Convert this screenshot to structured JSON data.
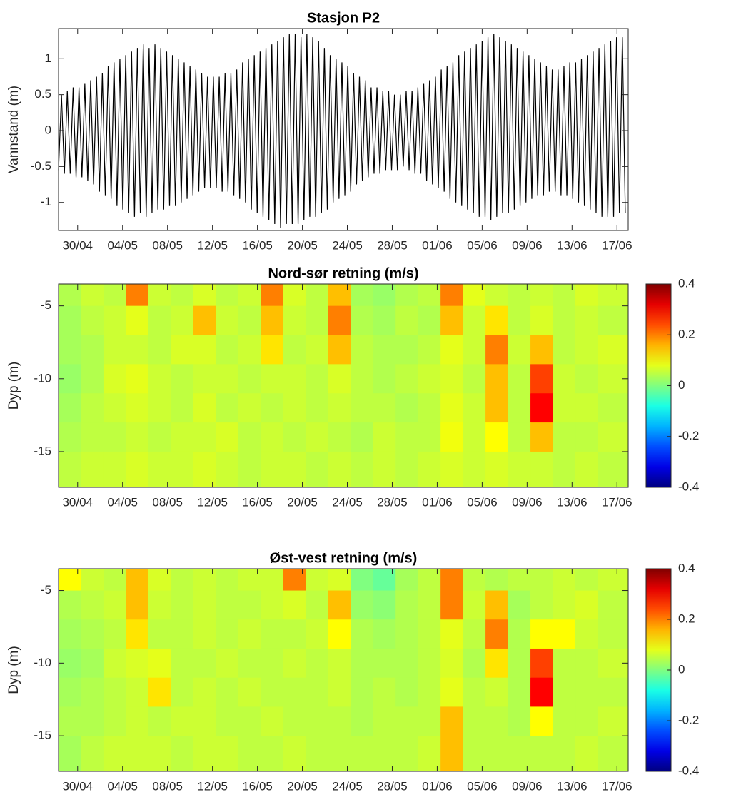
{
  "chart_data": [
    {
      "type": "line",
      "title": "Stasjon P2",
      "ylabel": "Vannstand (m)",
      "color": "#000000",
      "xlim": [
        0,
        50.7
      ],
      "ylim": [
        -1.39,
        1.42
      ],
      "yticks": [
        -1,
        -0.5,
        0,
        0.5,
        1
      ],
      "xticks": [
        {
          "value": 1.7,
          "label": "30/04"
        },
        {
          "value": 5.7,
          "label": "04/05"
        },
        {
          "value": 9.7,
          "label": "08/05"
        },
        {
          "value": 13.7,
          "label": "12/05"
        },
        {
          "value": 17.7,
          "label": "16/05"
        },
        {
          "value": 21.7,
          "label": "20/05"
        },
        {
          "value": 25.7,
          "label": "24/05"
        },
        {
          "value": 29.7,
          "label": "28/05"
        },
        {
          "value": 33.7,
          "label": "01/06"
        },
        {
          "value": 37.7,
          "label": "05/06"
        },
        {
          "value": 41.7,
          "label": "09/06"
        },
        {
          "value": 45.7,
          "label": "13/06"
        },
        {
          "value": 49.7,
          "label": "17/06"
        }
      ],
      "x": [
        0,
        0.26,
        0.52,
        0.78,
        1.04,
        1.3,
        1.56,
        1.82,
        2.08,
        2.34,
        2.6,
        2.86,
        3.12,
        3.38,
        3.64,
        3.9,
        4.16,
        4.42,
        4.68,
        4.94,
        5.2,
        5.46,
        5.72,
        5.98,
        6.24,
        6.5,
        6.76,
        7.02,
        7.28,
        7.54,
        7.8,
        8.06,
        8.32,
        8.58,
        8.84,
        9.1,
        9.36,
        9.62,
        9.88,
        10.14,
        10.4,
        10.66,
        10.92,
        11.18,
        11.44,
        11.7,
        11.96,
        12.22,
        12.48,
        12.74,
        13,
        13.26,
        13.52,
        13.78,
        14.04,
        14.3,
        14.56,
        14.82,
        15.08,
        15.34,
        15.6,
        15.86,
        16.12,
        16.38,
        16.64,
        16.9,
        17.16,
        17.42,
        17.68,
        17.94,
        18.2,
        18.46,
        18.72,
        18.98,
        19.24,
        19.5,
        19.76,
        20.02,
        20.28,
        20.54,
        20.8,
        21.06,
        21.32,
        21.58,
        21.84,
        22.1,
        22.36,
        22.62,
        22.88,
        23.14,
        23.4,
        23.66,
        23.92,
        24.18,
        24.44,
        24.7,
        24.96,
        25.22,
        25.48,
        25.74,
        26,
        26.26,
        26.52,
        26.78,
        27.04,
        27.3,
        27.56,
        27.82,
        28.08,
        28.34,
        28.6,
        28.86,
        29.12,
        29.38,
        29.64,
        29.9,
        30.16,
        30.42,
        30.68,
        30.94,
        31.2,
        31.46,
        31.72,
        31.98,
        32.24,
        32.5,
        32.76,
        33.02,
        33.28,
        33.54,
        33.8,
        34.06,
        34.32,
        34.58,
        34.84,
        35.1,
        35.36,
        35.62,
        35.88,
        36.14,
        36.4,
        36.66,
        36.92,
        37.18,
        37.44,
        37.7,
        37.96,
        38.22,
        38.48,
        38.74,
        39,
        39.26,
        39.52,
        39.78,
        40.04,
        40.3,
        40.56,
        40.82,
        41.08,
        41.34,
        41.6,
        41.86,
        42.12,
        42.38,
        42.64,
        42.9,
        43.16,
        43.42,
        43.68,
        43.94,
        44.2,
        44.46,
        44.72,
        44.98,
        45.24,
        45.5,
        45.76,
        46.02,
        46.28,
        46.54,
        46.8,
        47.06,
        47.32,
        47.58,
        47.84,
        48.1,
        48.36,
        48.62,
        48.88,
        49.14,
        49.4,
        49.66,
        49.92,
        50.18,
        50.44
      ],
      "values": [
        -0.55,
        0.5,
        -0.6,
        0.55,
        -0.6,
        0.6,
        -0.65,
        0.6,
        -0.65,
        0.65,
        -0.7,
        0.7,
        -0.75,
        0.75,
        -0.85,
        0.8,
        -0.9,
        0.9,
        -0.95,
        0.95,
        -1.05,
        1.0,
        -1.1,
        1.05,
        -1.15,
        1.1,
        -1.2,
        1.15,
        -1.15,
        1.2,
        -1.2,
        1.15,
        -1.15,
        1.2,
        -1.1,
        1.15,
        -1.1,
        1.1,
        -1.05,
        1.05,
        -1.05,
        1.0,
        -1.0,
        0.95,
        -0.95,
        0.9,
        -0.9,
        0.85,
        -0.85,
        0.8,
        -0.8,
        0.75,
        -0.8,
        0.75,
        -0.8,
        0.75,
        -0.85,
        0.8,
        -0.85,
        0.8,
        -0.9,
        0.85,
        -0.95,
        0.95,
        -1.0,
        1.0,
        -1.1,
        1.05,
        -1.15,
        1.1,
        -1.2,
        1.15,
        -1.25,
        1.2,
        -1.3,
        1.25,
        -1.35,
        1.3,
        -1.3,
        1.35,
        -1.3,
        1.35,
        -1.3,
        1.3,
        -1.25,
        1.35,
        -1.2,
        1.3,
        -1.2,
        1.25,
        -1.15,
        1.15,
        -1.1,
        1.05,
        -1.0,
        1.0,
        -0.95,
        0.95,
        -0.9,
        0.9,
        -0.85,
        0.8,
        -0.75,
        0.75,
        -0.7,
        0.7,
        -0.65,
        0.6,
        -0.6,
        0.6,
        -0.6,
        0.55,
        -0.55,
        0.55,
        -0.55,
        0.5,
        -0.55,
        0.5,
        -0.5,
        0.55,
        -0.55,
        0.55,
        -0.6,
        0.6,
        -0.6,
        0.65,
        -0.7,
        0.7,
        -0.75,
        0.75,
        -0.8,
        0.85,
        -0.85,
        0.9,
        -0.95,
        0.95,
        -1.0,
        1.05,
        -1.05,
        1.1,
        -1.1,
        1.15,
        -1.15,
        1.2,
        -1.2,
        1.25,
        -1.2,
        1.3,
        -1.25,
        1.35,
        -1.2,
        1.3,
        -1.15,
        1.25,
        -1.15,
        1.2,
        -1.1,
        1.15,
        -1.05,
        1.1,
        -1.0,
        1.05,
        -0.95,
        1.0,
        -0.9,
        0.95,
        -0.9,
        0.9,
        -0.85,
        0.85,
        -0.85,
        0.85,
        -0.9,
        0.9,
        -0.9,
        0.95,
        -0.95,
        0.95,
        -1.0,
        1.0,
        -1.05,
        1.05,
        -1.1,
        1.1,
        -1.15,
        1.15,
        -1.2,
        1.2,
        -1.2,
        1.25,
        -1.2,
        1.3,
        -1.15,
        1.3,
        -1.15
      ]
    },
    {
      "type": "heatmap",
      "title": "Nord-sør retning (m/s)",
      "ylabel": "Dyp (m)",
      "colormap": "jet",
      "xlim": [
        0,
        50.7
      ],
      "ylim": [
        -17.45,
        -3.5
      ],
      "yticks": [
        -15,
        -10,
        -5
      ],
      "clim": [
        -0.4,
        0.4
      ],
      "cticks": [
        -0.4,
        -0.2,
        0,
        0.2,
        0.4
      ],
      "xticks": [
        {
          "value": 1.7,
          "label": "30/04"
        },
        {
          "value": 5.7,
          "label": "04/05"
        },
        {
          "value": 9.7,
          "label": "08/05"
        },
        {
          "value": 13.7,
          "label": "12/05"
        },
        {
          "value": 17.7,
          "label": "16/05"
        },
        {
          "value": 21.7,
          "label": "20/05"
        },
        {
          "value": 25.7,
          "label": "24/05"
        },
        {
          "value": 29.7,
          "label": "28/05"
        },
        {
          "value": 33.7,
          "label": "01/06"
        },
        {
          "value": 37.7,
          "label": "05/06"
        },
        {
          "value": 41.7,
          "label": "09/06"
        },
        {
          "value": 45.7,
          "label": "13/06"
        },
        {
          "value": 49.7,
          "label": "17/06"
        }
      ],
      "x": [
        1,
        3,
        5,
        7,
        9,
        11,
        13,
        15,
        17,
        19,
        21,
        23,
        25,
        27,
        29,
        31,
        33,
        35,
        37,
        39,
        41,
        43,
        45,
        47,
        49
      ],
      "y": [
        -4,
        -6,
        -8,
        -10,
        -12,
        -14,
        -16
      ],
      "z": [
        [
          0.04,
          0.06,
          0.05,
          0.2,
          0.06,
          0.05,
          0.07,
          0.05,
          0.06,
          0.2,
          0.07,
          0.05,
          0.15,
          0.03,
          0.02,
          0.04,
          0.05,
          0.2,
          0.08,
          0.06,
          0.05,
          0.06,
          0.05,
          0.07,
          0.06
        ],
        [
          0.03,
          0.05,
          0.06,
          0.08,
          0.05,
          0.06,
          0.15,
          0.06,
          0.05,
          0.15,
          0.06,
          0.05,
          0.2,
          0.04,
          0.03,
          0.05,
          0.04,
          0.15,
          0.06,
          0.12,
          0.05,
          0.07,
          0.05,
          0.06,
          0.05
        ],
        [
          0.03,
          0.04,
          0.06,
          0.06,
          0.05,
          0.07,
          0.07,
          0.05,
          0.06,
          0.12,
          0.05,
          0.06,
          0.15,
          0.05,
          0.04,
          0.04,
          0.05,
          0.08,
          0.06,
          0.2,
          0.06,
          0.15,
          0.05,
          0.06,
          0.07
        ],
        [
          0.02,
          0.04,
          0.07,
          0.08,
          0.06,
          0.05,
          0.06,
          0.06,
          0.05,
          0.06,
          0.06,
          0.05,
          0.07,
          0.05,
          0.04,
          0.05,
          0.06,
          0.07,
          0.05,
          0.15,
          0.05,
          0.25,
          0.06,
          0.05,
          0.06
        ],
        [
          0.03,
          0.05,
          0.06,
          0.07,
          0.06,
          0.05,
          0.07,
          0.05,
          0.06,
          0.05,
          0.06,
          0.05,
          0.06,
          0.05,
          0.05,
          0.04,
          0.05,
          0.08,
          0.06,
          0.15,
          0.05,
          0.3,
          0.06,
          0.06,
          0.05
        ],
        [
          0.04,
          0.05,
          0.05,
          0.06,
          0.05,
          0.06,
          0.06,
          0.07,
          0.05,
          0.06,
          0.05,
          0.06,
          0.05,
          0.04,
          0.06,
          0.05,
          0.05,
          0.09,
          0.06,
          0.1,
          0.05,
          0.15,
          0.05,
          0.05,
          0.06
        ],
        [
          0.05,
          0.06,
          0.06,
          0.07,
          0.06,
          0.06,
          0.07,
          0.06,
          0.05,
          0.06,
          0.06,
          0.05,
          0.06,
          0.05,
          0.06,
          0.05,
          0.06,
          0.07,
          0.06,
          0.07,
          0.06,
          0.06,
          0.05,
          0.06,
          0.05
        ]
      ]
    },
    {
      "type": "heatmap",
      "title": "Øst-vest retning (m/s)",
      "ylabel": "Dyp (m)",
      "colormap": "jet",
      "xlim": [
        0,
        50.7
      ],
      "ylim": [
        -17.45,
        -3.5
      ],
      "yticks": [
        -15,
        -10,
        -5
      ],
      "clim": [
        -0.4,
        0.4
      ],
      "cticks": [
        -0.4,
        -0.2,
        0,
        0.2,
        0.4
      ],
      "xticks": [
        {
          "value": 1.7,
          "label": "30/04"
        },
        {
          "value": 5.7,
          "label": "04/05"
        },
        {
          "value": 9.7,
          "label": "08/05"
        },
        {
          "value": 13.7,
          "label": "12/05"
        },
        {
          "value": 17.7,
          "label": "16/05"
        },
        {
          "value": 21.7,
          "label": "20/05"
        },
        {
          "value": 25.7,
          "label": "24/05"
        },
        {
          "value": 29.7,
          "label": "28/05"
        },
        {
          "value": 33.7,
          "label": "01/06"
        },
        {
          "value": 37.7,
          "label": "05/06"
        },
        {
          "value": 41.7,
          "label": "09/06"
        },
        {
          "value": 45.7,
          "label": "13/06"
        },
        {
          "value": 49.7,
          "label": "17/06"
        }
      ],
      "x": [
        1,
        3,
        5,
        7,
        9,
        11,
        13,
        15,
        17,
        19,
        21,
        23,
        25,
        27,
        29,
        31,
        33,
        35,
        37,
        39,
        41,
        43,
        45,
        47,
        49
      ],
      "y": [
        -4,
        -6,
        -8,
        -10,
        -12,
        -14,
        -16
      ],
      "z": [
        [
          0.1,
          0.06,
          0.05,
          0.15,
          0.07,
          0.05,
          0.06,
          0.05,
          0.06,
          0.06,
          0.2,
          0.06,
          0.07,
          0.0,
          -0.02,
          0.03,
          0.05,
          0.2,
          0.05,
          0.04,
          0.05,
          0.05,
          0.06,
          0.05,
          0.06
        ],
        [
          0.04,
          0.05,
          0.06,
          0.15,
          0.06,
          0.05,
          0.06,
          0.05,
          0.05,
          0.06,
          0.07,
          0.05,
          0.15,
          0.02,
          0.01,
          0.04,
          0.05,
          0.2,
          0.06,
          0.15,
          0.03,
          0.05,
          0.06,
          0.07,
          0.05
        ],
        [
          0.03,
          0.04,
          0.05,
          0.12,
          0.05,
          0.05,
          0.06,
          0.05,
          0.06,
          0.05,
          0.05,
          0.06,
          0.1,
          0.04,
          0.03,
          0.04,
          0.05,
          0.08,
          0.05,
          0.2,
          0.04,
          0.1,
          0.1,
          0.06,
          0.05
        ],
        [
          0.02,
          0.03,
          0.06,
          0.07,
          0.08,
          0.05,
          0.05,
          0.06,
          0.05,
          0.05,
          0.06,
          0.05,
          0.06,
          0.04,
          0.04,
          0.04,
          0.05,
          0.07,
          0.04,
          0.12,
          0.04,
          0.25,
          0.05,
          0.05,
          0.06
        ],
        [
          0.03,
          0.04,
          0.05,
          0.06,
          0.12,
          0.05,
          0.06,
          0.05,
          0.06,
          0.05,
          0.05,
          0.05,
          0.06,
          0.04,
          0.05,
          0.04,
          0.05,
          0.08,
          0.05,
          0.06,
          0.04,
          0.3,
          0.05,
          0.05,
          0.05
        ],
        [
          0.04,
          0.04,
          0.05,
          0.06,
          0.05,
          0.06,
          0.06,
          0.05,
          0.05,
          0.06,
          0.05,
          0.05,
          0.05,
          0.04,
          0.05,
          0.05,
          0.05,
          0.15,
          0.05,
          0.05,
          0.04,
          0.1,
          0.05,
          0.05,
          0.06
        ],
        [
          0.03,
          0.05,
          0.06,
          0.06,
          0.06,
          0.05,
          0.06,
          0.06,
          0.05,
          0.05,
          0.06,
          0.05,
          0.05,
          0.05,
          0.05,
          0.05,
          0.06,
          0.15,
          0.05,
          0.05,
          0.05,
          0.05,
          0.05,
          0.06,
          0.05
        ]
      ]
    }
  ]
}
